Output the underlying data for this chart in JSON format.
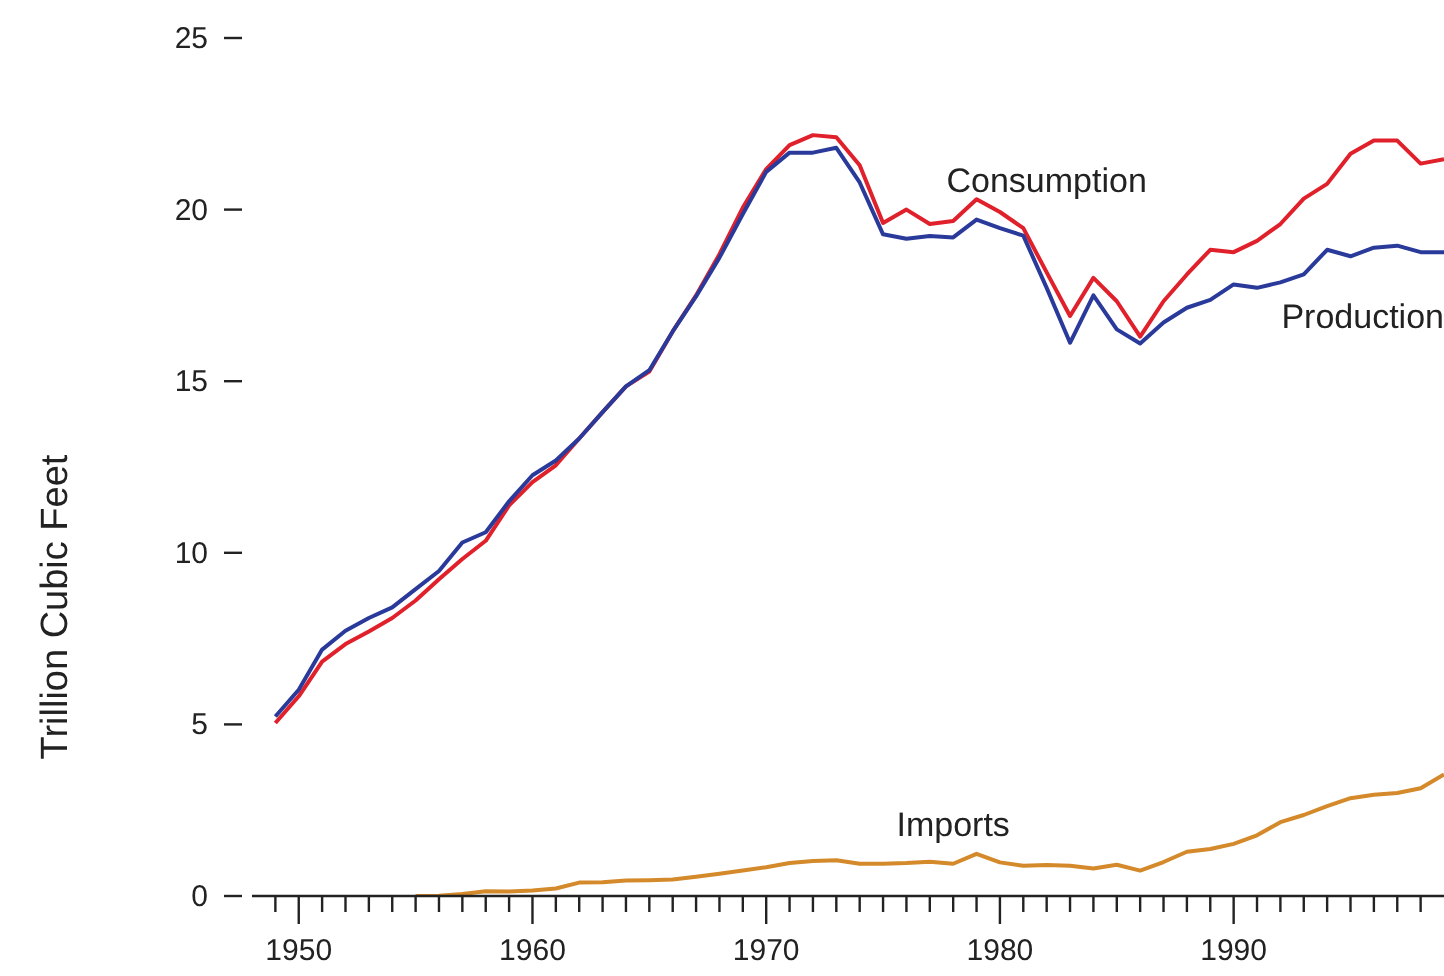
{
  "chart_data": {
    "type": "line",
    "ylabel": "Trillion Cubic Feet",
    "x": [
      1949,
      1950,
      1951,
      1952,
      1953,
      1954,
      1955,
      1956,
      1957,
      1958,
      1959,
      1960,
      1961,
      1962,
      1963,
      1964,
      1965,
      1966,
      1967,
      1968,
      1969,
      1970,
      1971,
      1972,
      1973,
      1974,
      1975,
      1976,
      1977,
      1978,
      1979,
      1980,
      1981,
      1982,
      1983,
      1984,
      1985,
      1986,
      1987,
      1988,
      1989,
      1990,
      1991,
      1992,
      1993,
      1994,
      1995,
      1996,
      1997,
      1998,
      1999
    ],
    "series": [
      {
        "name": "Consumption",
        "color": "#e0202a",
        "values": [
          5.04,
          5.82,
          6.83,
          7.34,
          7.71,
          8.1,
          8.61,
          9.23,
          9.82,
          10.35,
          11.38,
          12.06,
          12.55,
          13.33,
          14.1,
          14.85,
          15.28,
          16.45,
          17.5,
          18.7,
          20.06,
          21.18,
          21.88,
          22.17,
          22.11,
          21.29,
          19.61,
          20.0,
          19.58,
          19.67,
          20.3,
          19.93,
          19.46,
          18.17,
          16.9,
          18.01,
          17.33,
          16.3,
          17.33,
          18.11,
          18.83,
          18.76,
          19.09,
          19.58,
          20.32,
          20.75,
          21.63,
          22.01,
          22.01,
          21.34,
          21.47
        ]
      },
      {
        "name": "Production",
        "color": "#2a3a9a",
        "values": [
          5.23,
          6.01,
          7.18,
          7.73,
          8.1,
          8.41,
          8.94,
          9.47,
          10.3,
          10.6,
          11.5,
          12.26,
          12.69,
          13.33,
          14.1,
          14.85,
          15.32,
          16.45,
          17.47,
          18.6,
          19.87,
          21.1,
          21.66,
          21.66,
          21.8,
          20.79,
          19.28,
          19.15,
          19.23,
          19.19,
          19.71,
          19.46,
          19.24,
          17.72,
          16.12,
          17.5,
          16.51,
          16.1,
          16.71,
          17.14,
          17.37,
          17.82,
          17.72,
          17.88,
          18.11,
          18.83,
          18.64,
          18.89,
          18.95,
          18.76,
          18.76
        ]
      },
      {
        "name": "Imports",
        "color": "#d4892a",
        "values": [
          null,
          null,
          null,
          null,
          null,
          null,
          0,
          0.01,
          0.06,
          0.14,
          0.13,
          0.16,
          0.22,
          0.39,
          0.4,
          0.45,
          0.46,
          0.48,
          0.56,
          0.65,
          0.74,
          0.84,
          0.96,
          1.02,
          1.04,
          0.94,
          0.94,
          0.96,
          1.0,
          0.94,
          1.23,
          0.98,
          0.88,
          0.9,
          0.88,
          0.8,
          0.91,
          0.74,
          0.99,
          1.29,
          1.37,
          1.52,
          1.77,
          2.15,
          2.36,
          2.62,
          2.85,
          2.95,
          3.0,
          3.14,
          3.54
        ]
      }
    ],
    "xlim": [
      1948,
      1999
    ],
    "xticks": [
      {
        "value": 1949,
        "label": null
      },
      1950,
      {
        "value": 1951,
        "label": null
      },
      {
        "value": 1952,
        "label": null
      },
      {
        "value": 1953,
        "label": null
      },
      {
        "value": 1954,
        "label": null
      },
      {
        "value": 1955,
        "label": null
      },
      {
        "value": 1956,
        "label": null
      },
      {
        "value": 1957,
        "label": null
      },
      {
        "value": 1958,
        "label": null
      },
      {
        "value": 1959,
        "label": null
      },
      1960,
      {
        "value": 1961,
        "label": null
      },
      {
        "value": 1962,
        "label": null
      },
      {
        "value": 1963,
        "label": null
      },
      {
        "value": 1964,
        "label": null
      },
      {
        "value": 1965,
        "label": null
      },
      {
        "value": 1966,
        "label": null
      },
      {
        "value": 1967,
        "label": null
      },
      {
        "value": 1968,
        "label": null
      },
      {
        "value": 1969,
        "label": null
      },
      1970,
      {
        "value": 1971,
        "label": null
      },
      {
        "value": 1972,
        "label": null
      },
      {
        "value": 1973,
        "label": null
      },
      {
        "value": 1974,
        "label": null
      },
      {
        "value": 1975,
        "label": null
      },
      {
        "value": 1976,
        "label": null
      },
      {
        "value": 1977,
        "label": null
      },
      {
        "value": 1978,
        "label": null
      },
      {
        "value": 1979,
        "label": null
      },
      1980,
      {
        "value": 1981,
        "label": null
      },
      {
        "value": 1982,
        "label": null
      },
      {
        "value": 1983,
        "label": null
      },
      {
        "value": 1984,
        "label": null
      },
      {
        "value": 1985,
        "label": null
      },
      {
        "value": 1986,
        "label": null
      },
      {
        "value": 1987,
        "label": null
      },
      {
        "value": 1988,
        "label": null
      },
      {
        "value": 1989,
        "label": null
      },
      1990,
      {
        "value": 1991,
        "label": null
      },
      {
        "value": 1992,
        "label": null
      },
      {
        "value": 1993,
        "label": null
      },
      {
        "value": 1994,
        "label": null
      },
      {
        "value": 1995,
        "label": null
      },
      {
        "value": 1996,
        "label": null
      },
      {
        "value": 1997,
        "label": null
      },
      {
        "value": 1998,
        "label": null
      }
    ],
    "ylim": [
      0,
      25
    ],
    "yticks": [
      0,
      5,
      10,
      15,
      20,
      25
    ],
    "grid": false,
    "legend": false,
    "marker": "none",
    "line_style": "solid"
  }
}
